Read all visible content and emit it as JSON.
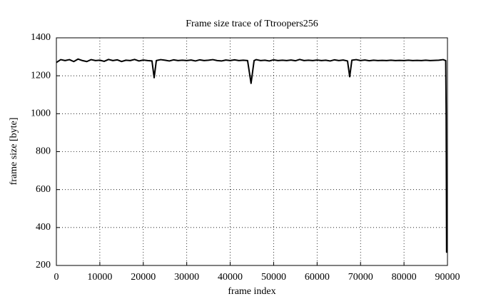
{
  "chart_data": {
    "type": "line",
    "title": "Frame size trace of Ttroopers256",
    "xlabel": "frame index",
    "ylabel": "frame size [byte]",
    "x": [
      0,
      1000,
      2000,
      3000,
      4000,
      5000,
      6000,
      7000,
      8000,
      9000,
      10000,
      11000,
      12000,
      13000,
      14000,
      15000,
      16000,
      17000,
      18000,
      19000,
      20000,
      21000,
      22000,
      22500,
      23000,
      24000,
      25000,
      26000,
      27000,
      28000,
      29000,
      30000,
      31000,
      32000,
      33000,
      34000,
      35000,
      36000,
      37000,
      38000,
      39000,
      40000,
      41000,
      42000,
      43000,
      44000,
      44800,
      45500,
      46000,
      47000,
      48000,
      49000,
      50000,
      51000,
      52000,
      53000,
      54000,
      55000,
      56000,
      57000,
      58000,
      59000,
      60000,
      61000,
      62000,
      63000,
      64000,
      65000,
      66000,
      67000,
      67500,
      68000,
      69000,
      70000,
      71000,
      72000,
      73000,
      74000,
      75000,
      76000,
      77000,
      78000,
      79000,
      80000,
      81000,
      82000,
      83000,
      84000,
      85000,
      86000,
      87000,
      88000,
      89000,
      89600,
      89700,
      89800,
      89900
    ],
    "series": [
      {
        "name": "Ttroopers256",
        "color": "#000000",
        "values": [
          1270,
          1285,
          1280,
          1285,
          1275,
          1288,
          1280,
          1275,
          1285,
          1280,
          1282,
          1276,
          1286,
          1280,
          1284,
          1275,
          1282,
          1280,
          1286,
          1278,
          1283,
          1280,
          1278,
          1190,
          1280,
          1285,
          1282,
          1278,
          1284,
          1280,
          1282,
          1280,
          1283,
          1278,
          1284,
          1280,
          1282,
          1285,
          1280,
          1278,
          1283,
          1280,
          1284,
          1280,
          1282,
          1280,
          1160,
          1280,
          1285,
          1280,
          1282,
          1278,
          1284,
          1280,
          1282,
          1280,
          1283,
          1279,
          1286,
          1280,
          1282,
          1280,
          1283,
          1280,
          1282,
          1278,
          1284,
          1280,
          1283,
          1278,
          1195,
          1282,
          1285,
          1280,
          1283,
          1279,
          1282,
          1280,
          1281,
          1280,
          1282,
          1280,
          1281,
          1280,
          1282,
          1280,
          1281,
          1280,
          1282,
          1280,
          1281,
          1282,
          1285,
          1280,
          1000,
          270,
          410
        ]
      }
    ],
    "xlim": [
      0,
      90000
    ],
    "ylim": [
      200,
      1400
    ],
    "xticks": [
      0,
      10000,
      20000,
      30000,
      40000,
      50000,
      60000,
      70000,
      80000,
      90000
    ],
    "yticks": [
      200,
      400,
      600,
      800,
      1000,
      1200,
      1400
    ],
    "grid": true
  }
}
